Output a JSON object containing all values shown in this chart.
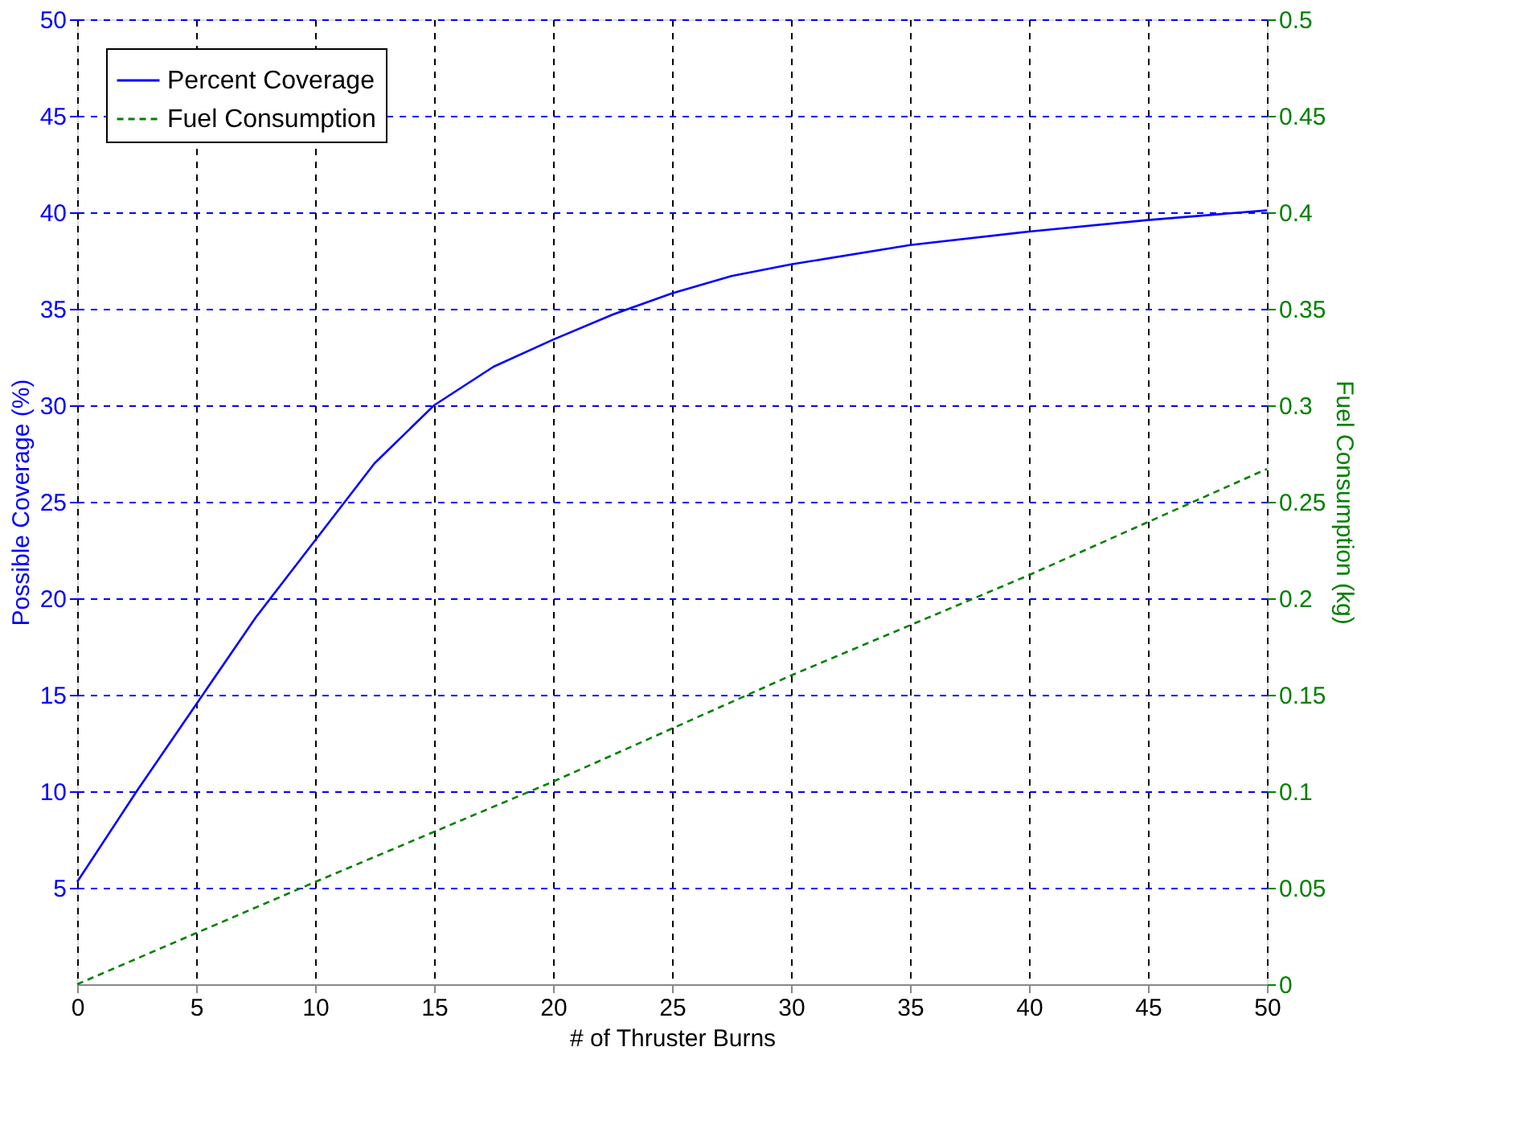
{
  "chart_data": {
    "type": "line",
    "xlabel": "# of Thruster Burns",
    "ylabel": "Possible Coverage (%)",
    "y2label": "Fuel Consumption (kg)",
    "xlim": [
      0,
      50
    ],
    "xticks": [
      0,
      5,
      10,
      15,
      20,
      25,
      30,
      35,
      40,
      45,
      50
    ],
    "ylim": [
      0,
      50
    ],
    "yticks": [
      5,
      10,
      15,
      20,
      25,
      30,
      35,
      40,
      45,
      50
    ],
    "y2lim": [
      0,
      0.5
    ],
    "y2ticks": [
      0,
      0.05,
      0.1,
      0.15,
      0.2,
      0.25,
      0.3,
      0.35,
      0.4,
      0.45,
      0.5
    ],
    "grid": true,
    "legend": "top left",
    "series": [
      {
        "name": "Percent Coverage",
        "color": "#0000ff",
        "line_style": "solid",
        "x": [
          0,
          2.5,
          5,
          7.5,
          10,
          12.5,
          15,
          17.5,
          20,
          22.5,
          25,
          27.5,
          30,
          35,
          40,
          45,
          50
        ],
        "values": [
          5.3,
          10,
          14.5,
          19,
          23,
          27,
          30,
          32,
          33.4,
          34.7,
          35.8,
          36.7,
          37.3,
          38.3,
          39,
          39.6,
          40.1
        ]
      },
      {
        "name": "Fuel Consumption",
        "color": "#008000",
        "line_style": "dashed",
        "axis": "y2",
        "x": [
          0,
          10,
          20,
          30,
          40,
          50
        ],
        "values": [
          0,
          0.053,
          0.105,
          0.16,
          0.212,
          0.267
        ]
      }
    ]
  }
}
